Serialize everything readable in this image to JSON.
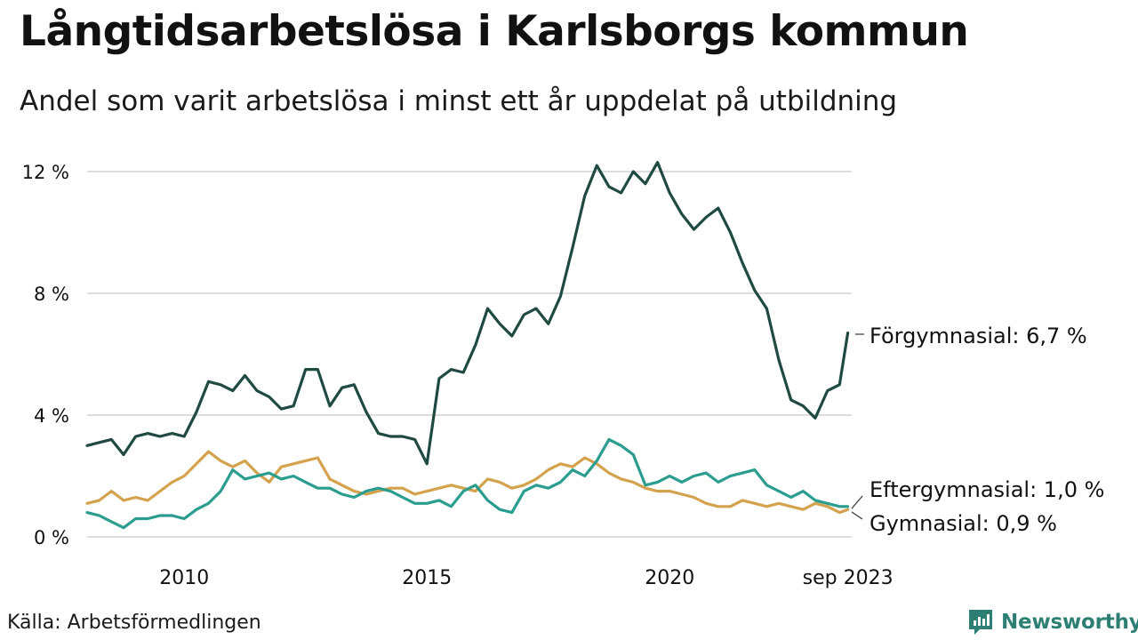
{
  "header": {
    "title": "Långtidsarbetslösa i Karlsborgs kommun",
    "subtitle": "Andel som varit arbetslösa i minst ett år uppdelat på utbildning"
  },
  "footer": {
    "source": "Källa: Arbetsförmedlingen",
    "brand": "Newsworthy"
  },
  "chart_data": {
    "type": "line",
    "title": "Långtidsarbetslösa i Karlsborgs kommun",
    "subtitle": "Andel som varit arbetslösa i minst ett år uppdelat på utbildning",
    "xlabel": "",
    "ylabel": "",
    "ylim": [
      0,
      12.4
    ],
    "xlim": [
      2008.0,
      2023.75
    ],
    "grid": true,
    "y_ticks": [
      {
        "value": 0,
        "label": "0 %"
      },
      {
        "value": 4,
        "label": "4 %"
      },
      {
        "value": 8,
        "label": "8 %"
      },
      {
        "value": 12,
        "label": "12 %"
      }
    ],
    "x_ticks": [
      {
        "value": 2010.0,
        "label": "2010"
      },
      {
        "value": 2015.0,
        "label": "2015"
      },
      {
        "value": 2020.0,
        "label": "2020"
      },
      {
        "value": 2023.67,
        "label": "sep 2023"
      }
    ],
    "series": [
      {
        "name": "Förgymnasial",
        "end_label": "Förgymnasial: 6,7 %",
        "color": "#1f4a42",
        "x": [
          2008.0,
          2008.25,
          2008.5,
          2008.75,
          2009.0,
          2009.25,
          2009.5,
          2009.75,
          2010.0,
          2010.25,
          2010.5,
          2010.75,
          2011.0,
          2011.25,
          2011.5,
          2011.75,
          2012.0,
          2012.25,
          2012.5,
          2012.75,
          2013.0,
          2013.25,
          2013.5,
          2013.75,
          2014.0,
          2014.25,
          2014.5,
          2014.75,
          2015.0,
          2015.25,
          2015.5,
          2015.75,
          2016.0,
          2016.25,
          2016.5,
          2016.75,
          2017.0,
          2017.25,
          2017.5,
          2017.75,
          2018.0,
          2018.25,
          2018.5,
          2018.75,
          2019.0,
          2019.25,
          2019.5,
          2019.75,
          2020.0,
          2020.25,
          2020.5,
          2020.75,
          2021.0,
          2021.25,
          2021.5,
          2021.75,
          2022.0,
          2022.25,
          2022.5,
          2022.75,
          2023.0,
          2023.25,
          2023.5,
          2023.67
        ],
        "values": [
          3.0,
          3.1,
          3.2,
          2.7,
          3.3,
          3.4,
          3.3,
          3.4,
          3.3,
          4.1,
          5.1,
          5.0,
          4.8,
          5.3,
          4.8,
          4.6,
          4.2,
          4.3,
          5.5,
          5.5,
          4.3,
          4.9,
          5.0,
          4.1,
          3.4,
          3.3,
          3.3,
          3.2,
          2.4,
          5.2,
          5.5,
          5.4,
          6.3,
          7.5,
          7.0,
          6.6,
          7.3,
          7.5,
          7.0,
          7.9,
          9.5,
          11.2,
          12.2,
          11.5,
          11.3,
          12.0,
          11.6,
          12.3,
          11.3,
          10.6,
          10.1,
          10.5,
          10.8,
          10.0,
          9.0,
          8.1,
          7.5,
          5.8,
          4.5,
          4.3,
          3.9,
          4.8,
          5.0,
          6.7
        ]
      },
      {
        "name": "Eftergymnasial",
        "end_label": "Eftergymnasial: 1,0 %",
        "color": "#2a9d8f",
        "x": [
          2008.0,
          2008.25,
          2008.5,
          2008.75,
          2009.0,
          2009.25,
          2009.5,
          2009.75,
          2010.0,
          2010.25,
          2010.5,
          2010.75,
          2011.0,
          2011.25,
          2011.5,
          2011.75,
          2012.0,
          2012.25,
          2012.5,
          2012.75,
          2013.0,
          2013.25,
          2013.5,
          2013.75,
          2014.0,
          2014.25,
          2014.5,
          2014.75,
          2015.0,
          2015.25,
          2015.5,
          2015.75,
          2016.0,
          2016.25,
          2016.5,
          2016.75,
          2017.0,
          2017.25,
          2017.5,
          2017.75,
          2018.0,
          2018.25,
          2018.5,
          2018.75,
          2019.0,
          2019.25,
          2019.5,
          2019.75,
          2020.0,
          2020.25,
          2020.5,
          2020.75,
          2021.0,
          2021.25,
          2021.5,
          2021.75,
          2022.0,
          2022.25,
          2022.5,
          2022.75,
          2023.0,
          2023.25,
          2023.5,
          2023.67
        ],
        "values": [
          0.8,
          0.7,
          0.5,
          0.3,
          0.6,
          0.6,
          0.7,
          0.7,
          0.6,
          0.9,
          1.1,
          1.5,
          2.2,
          1.9,
          2.0,
          2.1,
          1.9,
          2.0,
          1.8,
          1.6,
          1.6,
          1.4,
          1.3,
          1.5,
          1.6,
          1.5,
          1.3,
          1.1,
          1.1,
          1.2,
          1.0,
          1.5,
          1.7,
          1.2,
          0.9,
          0.8,
          1.5,
          1.7,
          1.6,
          1.8,
          2.2,
          2.0,
          2.5,
          3.2,
          3.0,
          2.7,
          1.7,
          1.8,
          2.0,
          1.8,
          2.0,
          2.1,
          1.8,
          2.0,
          2.1,
          2.2,
          1.7,
          1.5,
          1.3,
          1.5,
          1.2,
          1.1,
          1.0,
          1.0
        ]
      },
      {
        "name": "Gymnasial",
        "end_label": "Gymnasial: 0,9 %",
        "color": "#d4a24c",
        "x": [
          2008.0,
          2008.25,
          2008.5,
          2008.75,
          2009.0,
          2009.25,
          2009.5,
          2009.75,
          2010.0,
          2010.25,
          2010.5,
          2010.75,
          2011.0,
          2011.25,
          2011.5,
          2011.75,
          2012.0,
          2012.25,
          2012.5,
          2012.75,
          2013.0,
          2013.25,
          2013.5,
          2013.75,
          2014.0,
          2014.25,
          2014.5,
          2014.75,
          2015.0,
          2015.25,
          2015.5,
          2015.75,
          2016.0,
          2016.25,
          2016.5,
          2016.75,
          2017.0,
          2017.25,
          2017.5,
          2017.75,
          2018.0,
          2018.25,
          2018.5,
          2018.75,
          2019.0,
          2019.25,
          2019.5,
          2019.75,
          2020.0,
          2020.25,
          2020.5,
          2020.75,
          2021.0,
          2021.25,
          2021.5,
          2021.75,
          2022.0,
          2022.25,
          2022.5,
          2022.75,
          2023.0,
          2023.25,
          2023.5,
          2023.67
        ],
        "values": [
          1.1,
          1.2,
          1.5,
          1.2,
          1.3,
          1.2,
          1.5,
          1.8,
          2.0,
          2.4,
          2.8,
          2.5,
          2.3,
          2.5,
          2.1,
          1.8,
          2.3,
          2.4,
          2.5,
          2.6,
          1.9,
          1.7,
          1.5,
          1.4,
          1.5,
          1.6,
          1.6,
          1.4,
          1.5,
          1.6,
          1.7,
          1.6,
          1.5,
          1.9,
          1.8,
          1.6,
          1.7,
          1.9,
          2.2,
          2.4,
          2.3,
          2.6,
          2.4,
          2.1,
          1.9,
          1.8,
          1.6,
          1.5,
          1.5,
          1.4,
          1.3,
          1.1,
          1.0,
          1.0,
          1.2,
          1.1,
          1.0,
          1.1,
          1.0,
          0.9,
          1.1,
          1.0,
          0.8,
          0.9
        ]
      }
    ]
  },
  "colors": {
    "grid": "#dddddd",
    "text": "#111111",
    "brand": "#2e7f73"
  }
}
